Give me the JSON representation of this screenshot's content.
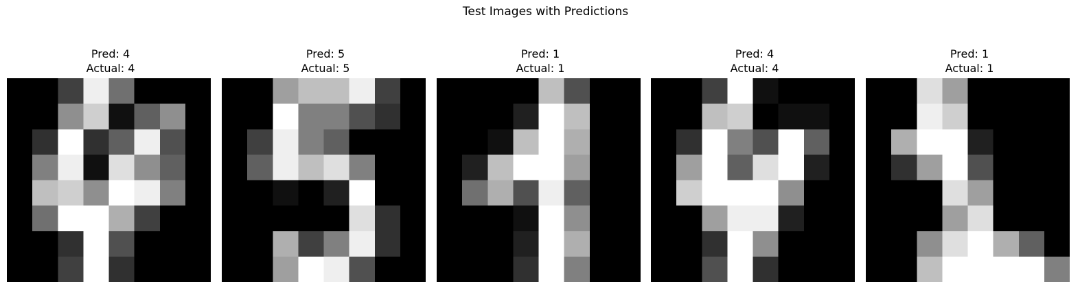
{
  "title": "Test Images with Predictions",
  "chart_data": [
    {
      "type": "heatmap",
      "title_lines": [
        "Pred: 4",
        "Actual: 4"
      ],
      "pred_label": "Pred: 4",
      "actual_label": "Actual: 4",
      "colormap": "gray",
      "value_range": [
        0,
        16
      ],
      "pixels": [
        [
          0,
          0,
          4,
          15,
          7,
          0,
          0,
          0
        ],
        [
          0,
          0,
          9,
          13,
          1,
          6,
          9,
          0
        ],
        [
          0,
          3,
          16,
          3,
          6,
          15,
          5,
          0
        ],
        [
          0,
          8,
          15,
          1,
          14,
          9,
          6,
          0
        ],
        [
          0,
          12,
          13,
          9,
          16,
          15,
          8,
          0
        ],
        [
          0,
          7,
          16,
          16,
          11,
          4,
          0,
          0
        ],
        [
          0,
          0,
          3,
          16,
          5,
          0,
          0,
          0
        ],
        [
          0,
          0,
          4,
          16,
          3,
          0,
          0,
          0
        ]
      ]
    },
    {
      "type": "heatmap",
      "title_lines": [
        "Pred: 5",
        "Actual: 5"
      ],
      "pred_label": "Pred: 5",
      "actual_label": "Actual: 5",
      "colormap": "gray",
      "value_range": [
        0,
        16
      ],
      "pixels": [
        [
          0,
          0,
          10,
          12,
          12,
          15,
          4,
          0
        ],
        [
          0,
          0,
          16,
          8,
          8,
          5,
          3,
          0
        ],
        [
          0,
          4,
          15,
          8,
          6,
          0,
          0,
          0
        ],
        [
          0,
          6,
          15,
          12,
          14,
          8,
          0,
          0
        ],
        [
          0,
          0,
          1,
          0,
          2,
          16,
          0,
          0
        ],
        [
          0,
          0,
          0,
          0,
          0,
          14,
          3,
          0
        ],
        [
          0,
          0,
          11,
          4,
          8,
          15,
          3,
          0
        ],
        [
          0,
          0,
          10,
          16,
          15,
          5,
          0,
          0
        ]
      ]
    },
    {
      "type": "heatmap",
      "title_lines": [
        "Pred: 1",
        "Actual: 1"
      ],
      "pred_label": "Pred: 1",
      "actual_label": "Actual: 1",
      "colormap": "gray",
      "value_range": [
        0,
        16
      ],
      "pixels": [
        [
          0,
          0,
          0,
          0,
          12,
          5,
          0,
          0
        ],
        [
          0,
          0,
          0,
          2,
          16,
          12,
          0,
          0
        ],
        [
          0,
          0,
          1,
          12,
          16,
          11,
          0,
          0
        ],
        [
          0,
          2,
          12,
          16,
          16,
          10,
          0,
          0
        ],
        [
          0,
          7,
          11,
          5,
          15,
          6,
          0,
          0
        ],
        [
          0,
          0,
          0,
          1,
          16,
          9,
          0,
          0
        ],
        [
          0,
          0,
          0,
          2,
          16,
          11,
          0,
          0
        ],
        [
          0,
          0,
          0,
          3,
          16,
          8,
          0,
          0
        ]
      ]
    },
    {
      "type": "heatmap",
      "title_lines": [
        "Pred: 4",
        "Actual: 4"
      ],
      "pred_label": "Pred: 4",
      "actual_label": "Actual: 4",
      "colormap": "gray",
      "value_range": [
        0,
        16
      ],
      "pixels": [
        [
          0,
          0,
          4,
          16,
          1,
          0,
          0,
          0
        ],
        [
          0,
          0,
          12,
          13,
          0,
          1,
          1,
          0
        ],
        [
          0,
          3,
          16,
          8,
          5,
          16,
          6,
          0
        ],
        [
          0,
          10,
          16,
          6,
          14,
          16,
          2,
          0
        ],
        [
          0,
          13,
          16,
          16,
          16,
          9,
          0,
          0
        ],
        [
          0,
          0,
          10,
          15,
          15,
          2,
          0,
          0
        ],
        [
          0,
          0,
          3,
          16,
          9,
          0,
          0,
          0
        ],
        [
          0,
          0,
          5,
          16,
          3,
          0,
          0,
          0
        ]
      ]
    },
    {
      "type": "heatmap",
      "title_lines": [
        "Pred: 1",
        "Actual: 1"
      ],
      "pred_label": "Pred: 1",
      "actual_label": "Actual: 1",
      "colormap": "gray",
      "value_range": [
        0,
        16
      ],
      "pixels": [
        [
          0,
          0,
          14,
          10,
          0,
          0,
          0,
          0
        ],
        [
          0,
          0,
          15,
          13,
          0,
          0,
          0,
          0
        ],
        [
          0,
          11,
          16,
          16,
          2,
          0,
          0,
          0
        ],
        [
          0,
          3,
          10,
          16,
          5,
          0,
          0,
          0
        ],
        [
          0,
          0,
          0,
          14,
          10,
          0,
          0,
          0
        ],
        [
          0,
          0,
          0,
          10,
          14,
          0,
          0,
          0
        ],
        [
          0,
          0,
          9,
          14,
          16,
          11,
          6,
          0
        ],
        [
          0,
          0,
          12,
          16,
          16,
          16,
          16,
          8
        ]
      ]
    }
  ]
}
